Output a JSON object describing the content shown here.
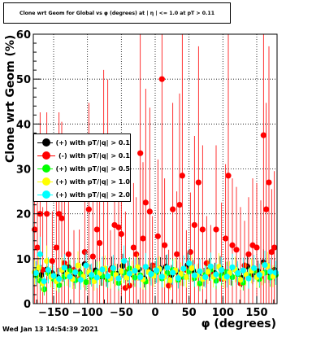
{
  "header": {
    "title": "Clone wrt Geom for Global vs φ (degrees) at | η | <= 1.0 at pT > 0.11"
  },
  "footer": {
    "timestamp": "Wed Jan 13 14:54:39 2021"
  },
  "colors": {
    "pt_01_pos": "#000000",
    "pt_01_neg": "#ff0000",
    "pt_05": "#00ff00",
    "pt_10": "#ffff00",
    "pt_20": "#00ffff"
  },
  "chart_data": {
    "type": "scatter",
    "title": "Clone wrt Geom for Global vs φ (degrees) at | η | <= 1.0 at pT > 0.11",
    "xlabel": "φ (degrees)",
    "ylabel": "Clone wrt Geom (%)",
    "xlim": [
      -180,
      180
    ],
    "ylim": [
      0,
      60
    ],
    "grid": true,
    "legend_position": "left-middle",
    "x_ticks": [
      -150,
      -100,
      -50,
      0,
      50,
      100,
      150
    ],
    "x_tick_labels": [
      "−150",
      "−100",
      "−50",
      "0",
      "50",
      "100",
      "150"
    ],
    "y_ticks": [
      0,
      10,
      20,
      30,
      40,
      50,
      60
    ],
    "y_tick_labels": [
      "0",
      "10",
      "20",
      "30",
      "40",
      "50",
      "60"
    ],
    "series": [
      {
        "name": "(+) with pT/|q| > 0.1",
        "color": "#000000",
        "values": [
          [
            -176,
            7.1
          ],
          [
            -168,
            6.4
          ],
          [
            -160,
            7.6
          ],
          [
            -152,
            6.8
          ],
          [
            -144,
            5.9
          ],
          [
            -136,
            7.3
          ],
          [
            -128,
            8.1
          ],
          [
            -120,
            6.2
          ],
          [
            -112,
            7.0
          ],
          [
            -104,
            8.8
          ],
          [
            -96,
            6.5
          ],
          [
            -88,
            7.4
          ],
          [
            -80,
            6.1
          ],
          [
            -72,
            5.8
          ],
          [
            -64,
            7.9
          ],
          [
            -56,
            6.6
          ],
          [
            -48,
            8.4
          ],
          [
            -40,
            7.2
          ],
          [
            -32,
            6.3
          ],
          [
            -24,
            7.7
          ],
          [
            -16,
            5.6
          ],
          [
            -8,
            7.5
          ],
          [
            0,
            6.9
          ],
          [
            8,
            7.8
          ],
          [
            16,
            8.2
          ],
          [
            24,
            6.4
          ],
          [
            32,
            7.1
          ],
          [
            40,
            6.0
          ],
          [
            48,
            8.6
          ],
          [
            56,
            7.3
          ],
          [
            64,
            6.7
          ],
          [
            72,
            5.9
          ],
          [
            80,
            7.6
          ],
          [
            88,
            6.8
          ],
          [
            96,
            8.0
          ],
          [
            104,
            7.0
          ],
          [
            112,
            6.2
          ],
          [
            120,
            7.4
          ],
          [
            128,
            5.7
          ],
          [
            136,
            8.3
          ],
          [
            144,
            6.5
          ],
          [
            152,
            7.2
          ],
          [
            160,
            9.2
          ],
          [
            168,
            6.9
          ],
          [
            176,
            7.5
          ]
        ]
      },
      {
        "name": "(-) with pT/|q| > 0.1",
        "color": "#ff0000",
        "values": [
          [
            -178,
            16.5
          ],
          [
            -174,
            12.5
          ],
          [
            -170,
            20.0
          ],
          [
            -166,
            7.5
          ],
          [
            -160,
            20.0
          ],
          [
            -152,
            9.5
          ],
          [
            -146,
            12.5
          ],
          [
            -142,
            20.0
          ],
          [
            -138,
            19.0
          ],
          [
            -134,
            9.0
          ],
          [
            -128,
            11.0
          ],
          [
            -120,
            7.5
          ],
          [
            -112,
            5.5
          ],
          [
            -104,
            11.5
          ],
          [
            -98,
            21.0
          ],
          [
            -92,
            10.5
          ],
          [
            -86,
            16.5
          ],
          [
            -82,
            13.5
          ],
          [
            -76,
            24.5
          ],
          [
            -70,
            23.5
          ],
          [
            -66,
            7.5
          ],
          [
            -60,
            17.5
          ],
          [
            -54,
            17.0
          ],
          [
            -50,
            15.5
          ],
          [
            -44,
            3.5
          ],
          [
            -38,
            4.0
          ],
          [
            -32,
            12.5
          ],
          [
            -28,
            11.0
          ],
          [
            -22,
            33.5
          ],
          [
            -18,
            14.5
          ],
          [
            -14,
            22.5
          ],
          [
            -8,
            20.5
          ],
          [
            -4,
            8.5
          ],
          [
            4,
            15.0
          ],
          [
            10,
            50.0
          ],
          [
            14,
            13.0
          ],
          [
            20,
            4.0
          ],
          [
            26,
            21.0
          ],
          [
            32,
            11.0
          ],
          [
            36,
            22.0
          ],
          [
            40,
            28.5
          ],
          [
            46,
            7.5
          ],
          [
            52,
            11.5
          ],
          [
            58,
            17.5
          ],
          [
            64,
            27.0
          ],
          [
            70,
            16.5
          ],
          [
            76,
            9.0
          ],
          [
            82,
            6.5
          ],
          [
            90,
            16.5
          ],
          [
            98,
            5.5
          ],
          [
            104,
            14.5
          ],
          [
            108,
            28.5
          ],
          [
            114,
            13.0
          ],
          [
            120,
            12.0
          ],
          [
            126,
            4.5
          ],
          [
            132,
            8.5
          ],
          [
            138,
            11.0
          ],
          [
            144,
            13.0
          ],
          [
            150,
            12.5
          ],
          [
            156,
            6.0
          ],
          [
            160,
            37.5
          ],
          [
            164,
            21.0
          ],
          [
            168,
            27.0
          ],
          [
            172,
            11.5
          ],
          [
            176,
            12.5
          ]
        ]
      },
      {
        "name": "(+) with pT/|q| > 0.5",
        "color": "#00ff00",
        "values": [
          [
            -176,
            6.2
          ],
          [
            -170,
            5.1
          ],
          [
            -164,
            3.2
          ],
          [
            -158,
            6.8
          ],
          [
            -150,
            5.5
          ],
          [
            -142,
            4.1
          ],
          [
            -134,
            6.0
          ],
          [
            -126,
            7.3
          ],
          [
            -118,
            5.2
          ],
          [
            -110,
            6.6
          ],
          [
            -102,
            4.8
          ],
          [
            -94,
            5.9
          ],
          [
            -86,
            7.0
          ],
          [
            -78,
            6.1
          ],
          [
            -70,
            5.4
          ],
          [
            -62,
            6.7
          ],
          [
            -54,
            4.6
          ],
          [
            -46,
            6.9
          ],
          [
            -38,
            7.8
          ],
          [
            -30,
            5.8
          ],
          [
            -22,
            6.3
          ],
          [
            -14,
            4.9
          ],
          [
            -6,
            6.5
          ],
          [
            2,
            7.1
          ],
          [
            10,
            5.6
          ],
          [
            18,
            6.8
          ],
          [
            26,
            7.5
          ],
          [
            34,
            5.3
          ],
          [
            42,
            6.0
          ],
          [
            50,
            7.2
          ],
          [
            58,
            5.7
          ],
          [
            66,
            4.5
          ],
          [
            74,
            6.4
          ],
          [
            82,
            7.6
          ],
          [
            90,
            5.1
          ],
          [
            98,
            6.2
          ],
          [
            106,
            7.0
          ],
          [
            114,
            5.9
          ],
          [
            122,
            6.6
          ],
          [
            130,
            4.7
          ],
          [
            138,
            6.1
          ],
          [
            146,
            7.3
          ],
          [
            154,
            5.5
          ],
          [
            162,
            6.9
          ],
          [
            170,
            5.8
          ],
          [
            178,
            6.4
          ]
        ]
      },
      {
        "name": "(+) with pT/|q| > 1.0",
        "color": "#ffff00",
        "values": [
          [
            -178,
            7.0
          ],
          [
            -172,
            8.0
          ],
          [
            -166,
            4.5
          ],
          [
            -160,
            9.5
          ],
          [
            -154,
            6.0
          ],
          [
            -146,
            5.0
          ],
          [
            -138,
            7.5
          ],
          [
            -130,
            6.5
          ],
          [
            -122,
            5.5
          ],
          [
            -114,
            8.5
          ],
          [
            -106,
            6.0
          ],
          [
            -98,
            7.0
          ],
          [
            -90,
            5.0
          ],
          [
            -82,
            6.8
          ],
          [
            -74,
            7.8
          ],
          [
            -66,
            5.6
          ],
          [
            -58,
            6.4
          ],
          [
            -50,
            7.2
          ],
          [
            -42,
            5.8
          ],
          [
            -34,
            6.9
          ],
          [
            -26,
            8.1
          ],
          [
            -18,
            5.4
          ],
          [
            -10,
            7.0
          ],
          [
            -2,
            6.2
          ],
          [
            6,
            7.7
          ],
          [
            14,
            6.0
          ],
          [
            22,
            5.2
          ],
          [
            30,
            7.4
          ],
          [
            38,
            6.6
          ],
          [
            46,
            5.9
          ],
          [
            54,
            7.9
          ],
          [
            62,
            6.3
          ],
          [
            70,
            5.5
          ],
          [
            78,
            7.1
          ],
          [
            86,
            6.0
          ],
          [
            94,
            8.2
          ],
          [
            102,
            5.7
          ],
          [
            110,
            6.8
          ],
          [
            118,
            7.6
          ],
          [
            126,
            5.3
          ],
          [
            134,
            6.5
          ],
          [
            142,
            7.3
          ],
          [
            150,
            5.9
          ],
          [
            158,
            6.7
          ],
          [
            166,
            8.4
          ],
          [
            174,
            6.1
          ]
        ]
      },
      {
        "name": "(+) with pT/|q| > 2.0",
        "color": "#00ffff",
        "values": [
          [
            -176,
            6.8
          ],
          [
            -170,
            11.0
          ],
          [
            -164,
            5.0
          ],
          [
            -158,
            7.5
          ],
          [
            -150,
            6.2
          ],
          [
            -142,
            5.5
          ],
          [
            -134,
            8.0
          ],
          [
            -126,
            6.0
          ],
          [
            -118,
            7.0
          ],
          [
            -110,
            5.3
          ],
          [
            -102,
            8.5
          ],
          [
            -94,
            6.4
          ],
          [
            -86,
            5.8
          ],
          [
            -78,
            7.6
          ],
          [
            -70,
            6.1
          ],
          [
            -62,
            7.9
          ],
          [
            -54,
            5.6
          ],
          [
            -46,
            9.5
          ],
          [
            -38,
            6.7
          ],
          [
            -30,
            7.3
          ],
          [
            -22,
            5.9
          ],
          [
            -14,
            8.2
          ],
          [
            -6,
            6.6
          ],
          [
            2,
            7.4
          ],
          [
            10,
            6.0
          ],
          [
            18,
            8.0
          ],
          [
            26,
            6.9
          ],
          [
            34,
            5.7
          ],
          [
            42,
            7.8
          ],
          [
            50,
            9.0
          ],
          [
            58,
            6.3
          ],
          [
            66,
            7.2
          ],
          [
            74,
            5.9
          ],
          [
            82,
            8.3
          ],
          [
            90,
            6.5
          ],
          [
            98,
            7.5
          ],
          [
            106,
            6.0
          ],
          [
            114,
            8.1
          ],
          [
            122,
            6.8
          ],
          [
            130,
            7.4
          ],
          [
            138,
            5.6
          ],
          [
            146,
            7.9
          ],
          [
            154,
            6.4
          ],
          [
            162,
            8.6
          ],
          [
            170,
            7.1
          ],
          [
            178,
            6.9
          ]
        ]
      }
    ]
  }
}
